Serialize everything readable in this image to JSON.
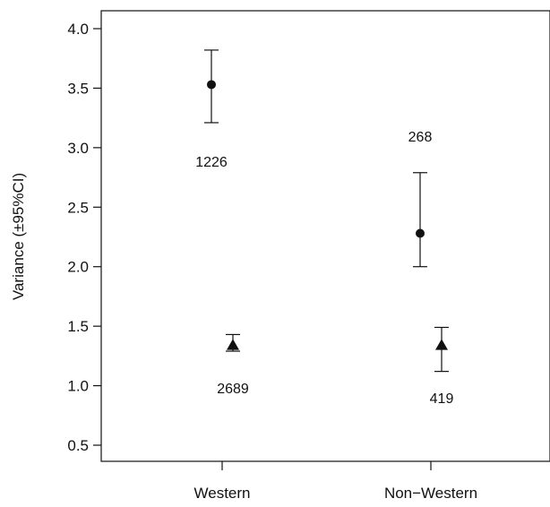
{
  "chart_data": {
    "type": "scatter",
    "title": "",
    "xlabel": "",
    "ylabel": "Variance (±95%CI)",
    "categories": [
      "Western",
      "Non−Western"
    ],
    "ylim": [
      0.4,
      4.15
    ],
    "yticks": [
      "0.5",
      "1.0",
      "1.5",
      "2.0",
      "2.5",
      "3.0",
      "3.5",
      "4.0"
    ],
    "grid": false,
    "legend": "none",
    "series": [
      {
        "marker": "circle",
        "points": [
          {
            "category": "Western",
            "y": 3.53,
            "ci_low": 3.21,
            "ci_high": 3.82,
            "n": "1226"
          },
          {
            "category": "Non−Western",
            "y": 2.28,
            "ci_low": 2.0,
            "ci_high": 2.79,
            "n": "268"
          }
        ]
      },
      {
        "marker": "triangle",
        "points": [
          {
            "category": "Western",
            "y": 1.34,
            "ci_low": 1.29,
            "ci_high": 1.43,
            "n": "2689"
          },
          {
            "category": "Non−Western",
            "y": 1.34,
            "ci_low": 1.12,
            "ci_high": 1.49,
            "n": "419"
          }
        ]
      }
    ],
    "colors": {
      "ink": "#111111",
      "background": "#ffffff"
    }
  }
}
